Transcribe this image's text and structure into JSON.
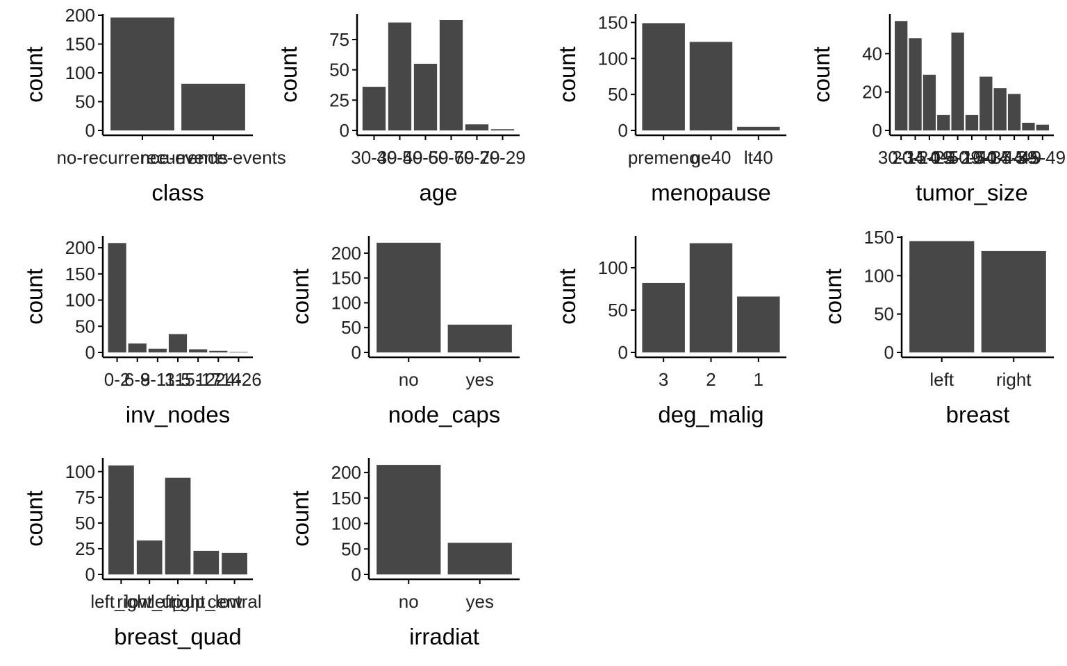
{
  "chart_data": [
    {
      "type": "bar",
      "xlabel": "class",
      "ylabel": "count",
      "categories": [
        "no-recurrence-events",
        "recurrence-events"
      ],
      "values": [
        196,
        81
      ],
      "ylim": [
        0,
        200
      ],
      "yticks": [
        0,
        50,
        100,
        150,
        200
      ]
    },
    {
      "type": "bar",
      "xlabel": "age",
      "ylabel": "count",
      "categories": [
        "30-39",
        "40-49",
        "50-59",
        "60-69",
        "70-79",
        "20-29"
      ],
      "values": [
        36,
        89,
        55,
        91,
        5,
        1
      ],
      "ylim": [
        0,
        95
      ],
      "yticks": [
        0,
        25,
        50,
        75
      ]
    },
    {
      "type": "bar",
      "xlabel": "menopause",
      "ylabel": "count",
      "categories": [
        "premeno",
        "ge40",
        "lt40"
      ],
      "values": [
        149,
        123,
        5
      ],
      "ylim": [
        0,
        160
      ],
      "yticks": [
        0,
        50,
        100,
        150
      ]
    },
    {
      "type": "bar",
      "xlabel": "tumor_size",
      "ylabel": "count",
      "categories": [
        "30-34",
        "20-24",
        "15-19",
        "0-4",
        "25-29",
        "50-54",
        "10-14",
        "40-44",
        "35-39",
        "5-9",
        "45-49"
      ],
      "values": [
        57,
        48,
        29,
        8,
        51,
        8,
        28,
        22,
        19,
        4,
        3
      ],
      "ylim": [
        0,
        60
      ],
      "yticks": [
        0,
        20,
        40
      ]
    },
    {
      "type": "bar",
      "xlabel": "inv_nodes",
      "ylabel": "count",
      "categories": [
        "0-2",
        "6-8",
        "9-11",
        "3-5",
        "15-17",
        "12-14",
        "24-26"
      ],
      "values": [
        209,
        17,
        7,
        35,
        6,
        3,
        1
      ],
      "ylim": [
        0,
        220
      ],
      "yticks": [
        0,
        50,
        100,
        150,
        200
      ]
    },
    {
      "type": "bar",
      "xlabel": "node_caps",
      "ylabel": "count",
      "categories": [
        "no",
        "yes"
      ],
      "values": [
        221,
        56
      ],
      "ylim": [
        0,
        232
      ],
      "yticks": [
        0,
        50,
        100,
        150,
        200
      ]
    },
    {
      "type": "bar",
      "xlabel": "deg_malig",
      "ylabel": "count",
      "categories": [
        "3",
        "2",
        "1"
      ],
      "values": [
        82,
        129,
        66
      ],
      "ylim": [
        0,
        136
      ],
      "yticks": [
        0,
        50,
        100
      ]
    },
    {
      "type": "bar",
      "xlabel": "breast",
      "ylabel": "count",
      "categories": [
        "left",
        "right"
      ],
      "values": [
        145,
        132
      ],
      "ylim": [
        0,
        150
      ],
      "yticks": [
        0,
        50,
        100,
        150
      ]
    },
    {
      "type": "bar",
      "xlabel": "breast_quad",
      "ylabel": "count",
      "categories": [
        "left_low",
        "right_up",
        "left_up",
        "right_low",
        "central"
      ],
      "values": [
        106,
        33,
        94,
        23,
        21
      ],
      "ylim": [
        0,
        112
      ],
      "yticks": [
        0,
        25,
        50,
        75,
        100
      ]
    },
    {
      "type": "bar",
      "xlabel": "irradiat",
      "ylabel": "count",
      "categories": [
        "no",
        "yes"
      ],
      "values": [
        215,
        62
      ],
      "ylim": [
        0,
        226
      ],
      "yticks": [
        0,
        50,
        100,
        150,
        200
      ]
    }
  ]
}
